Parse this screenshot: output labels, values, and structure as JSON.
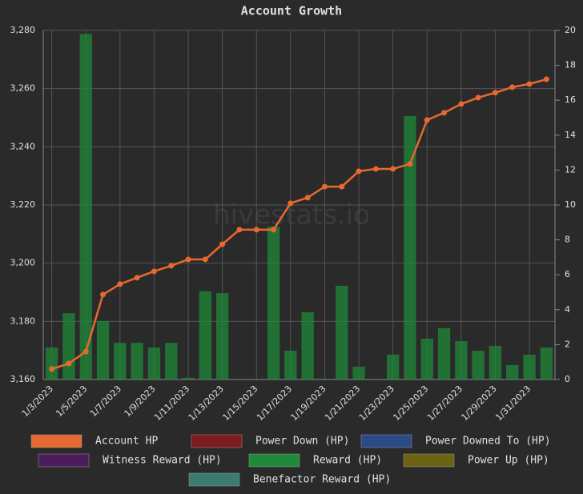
{
  "chart_data": {
    "type": "bar-line",
    "title": "Account Growth",
    "watermark": "hivestats.io",
    "categories": [
      "1/3/2023",
      null,
      "1/5/2023",
      null,
      "1/7/2023",
      null,
      "1/9/2023",
      null,
      "1/11/2023",
      null,
      "1/13/2023",
      null,
      "1/15/2023",
      null,
      "1/17/2023",
      null,
      "1/19/2023",
      null,
      "1/21/2023",
      null,
      "1/23/2023",
      null,
      "1/25/2023",
      null,
      "1/27/2023",
      null,
      "1/29/2023",
      null,
      "1/31/2023",
      null
    ],
    "series": [
      {
        "name": "Account HP",
        "color": "#e8692f",
        "kind": "line",
        "axis": "y",
        "values": [
          3163.6,
          3165.5,
          3169.6,
          3189.2,
          3192.8,
          3195.0,
          3197.2,
          3199.1,
          3201.3,
          3201.3,
          3206.5,
          3211.5,
          3211.5,
          3211.5,
          3220.6,
          3222.5,
          3226.3,
          3226.3,
          3231.6,
          3232.4,
          3232.4,
          3234.1,
          3249.2,
          3251.7,
          3254.7,
          3256.9,
          3258.6,
          3260.5,
          3261.6,
          3263.2
        ]
      },
      {
        "name": "Power Down (HP)",
        "color": "#7d1c1c"
      },
      {
        "name": "Power Downed To (HP)",
        "color": "#2b4a86"
      },
      {
        "name": "Witness Reward (HP)",
        "color": "#4b1d5a"
      },
      {
        "name": "Reward (HP)",
        "color": "#1f8a3a",
        "kind": "bar",
        "axis": "y2",
        "values": [
          1.83,
          3.8,
          19.8,
          3.35,
          2.1,
          2.1,
          1.83,
          2.1,
          0.1,
          5.05,
          4.95,
          0,
          0,
          8.76,
          1.65,
          3.85,
          0.05,
          5.37,
          0.73,
          0,
          1.42,
          15.1,
          2.34,
          2.94,
          2.2,
          1.65,
          1.93,
          0.83,
          1.42,
          1.83
        ]
      },
      {
        "name": "Power Up (HP)",
        "color": "#6b6212"
      },
      {
        "name": "Benefactor Reward (HP)",
        "color": "#3b7c72"
      }
    ],
    "ylim": [
      3160,
      3280
    ],
    "yticks": [
      {
        "value": 3160,
        "label": "3,160"
      },
      {
        "value": 3180,
        "label": "3,180"
      },
      {
        "value": 3200,
        "label": "3,200"
      },
      {
        "value": 3220,
        "label": "3,220"
      },
      {
        "value": 3240,
        "label": "3,240"
      },
      {
        "value": 3260,
        "label": "3,260"
      },
      {
        "value": 3280,
        "label": "3,280"
      }
    ],
    "y2lim": [
      0,
      20
    ],
    "y2ticks": [
      0,
      2,
      4,
      6,
      8,
      10,
      12,
      14,
      16,
      18,
      20
    ],
    "grid": true
  }
}
